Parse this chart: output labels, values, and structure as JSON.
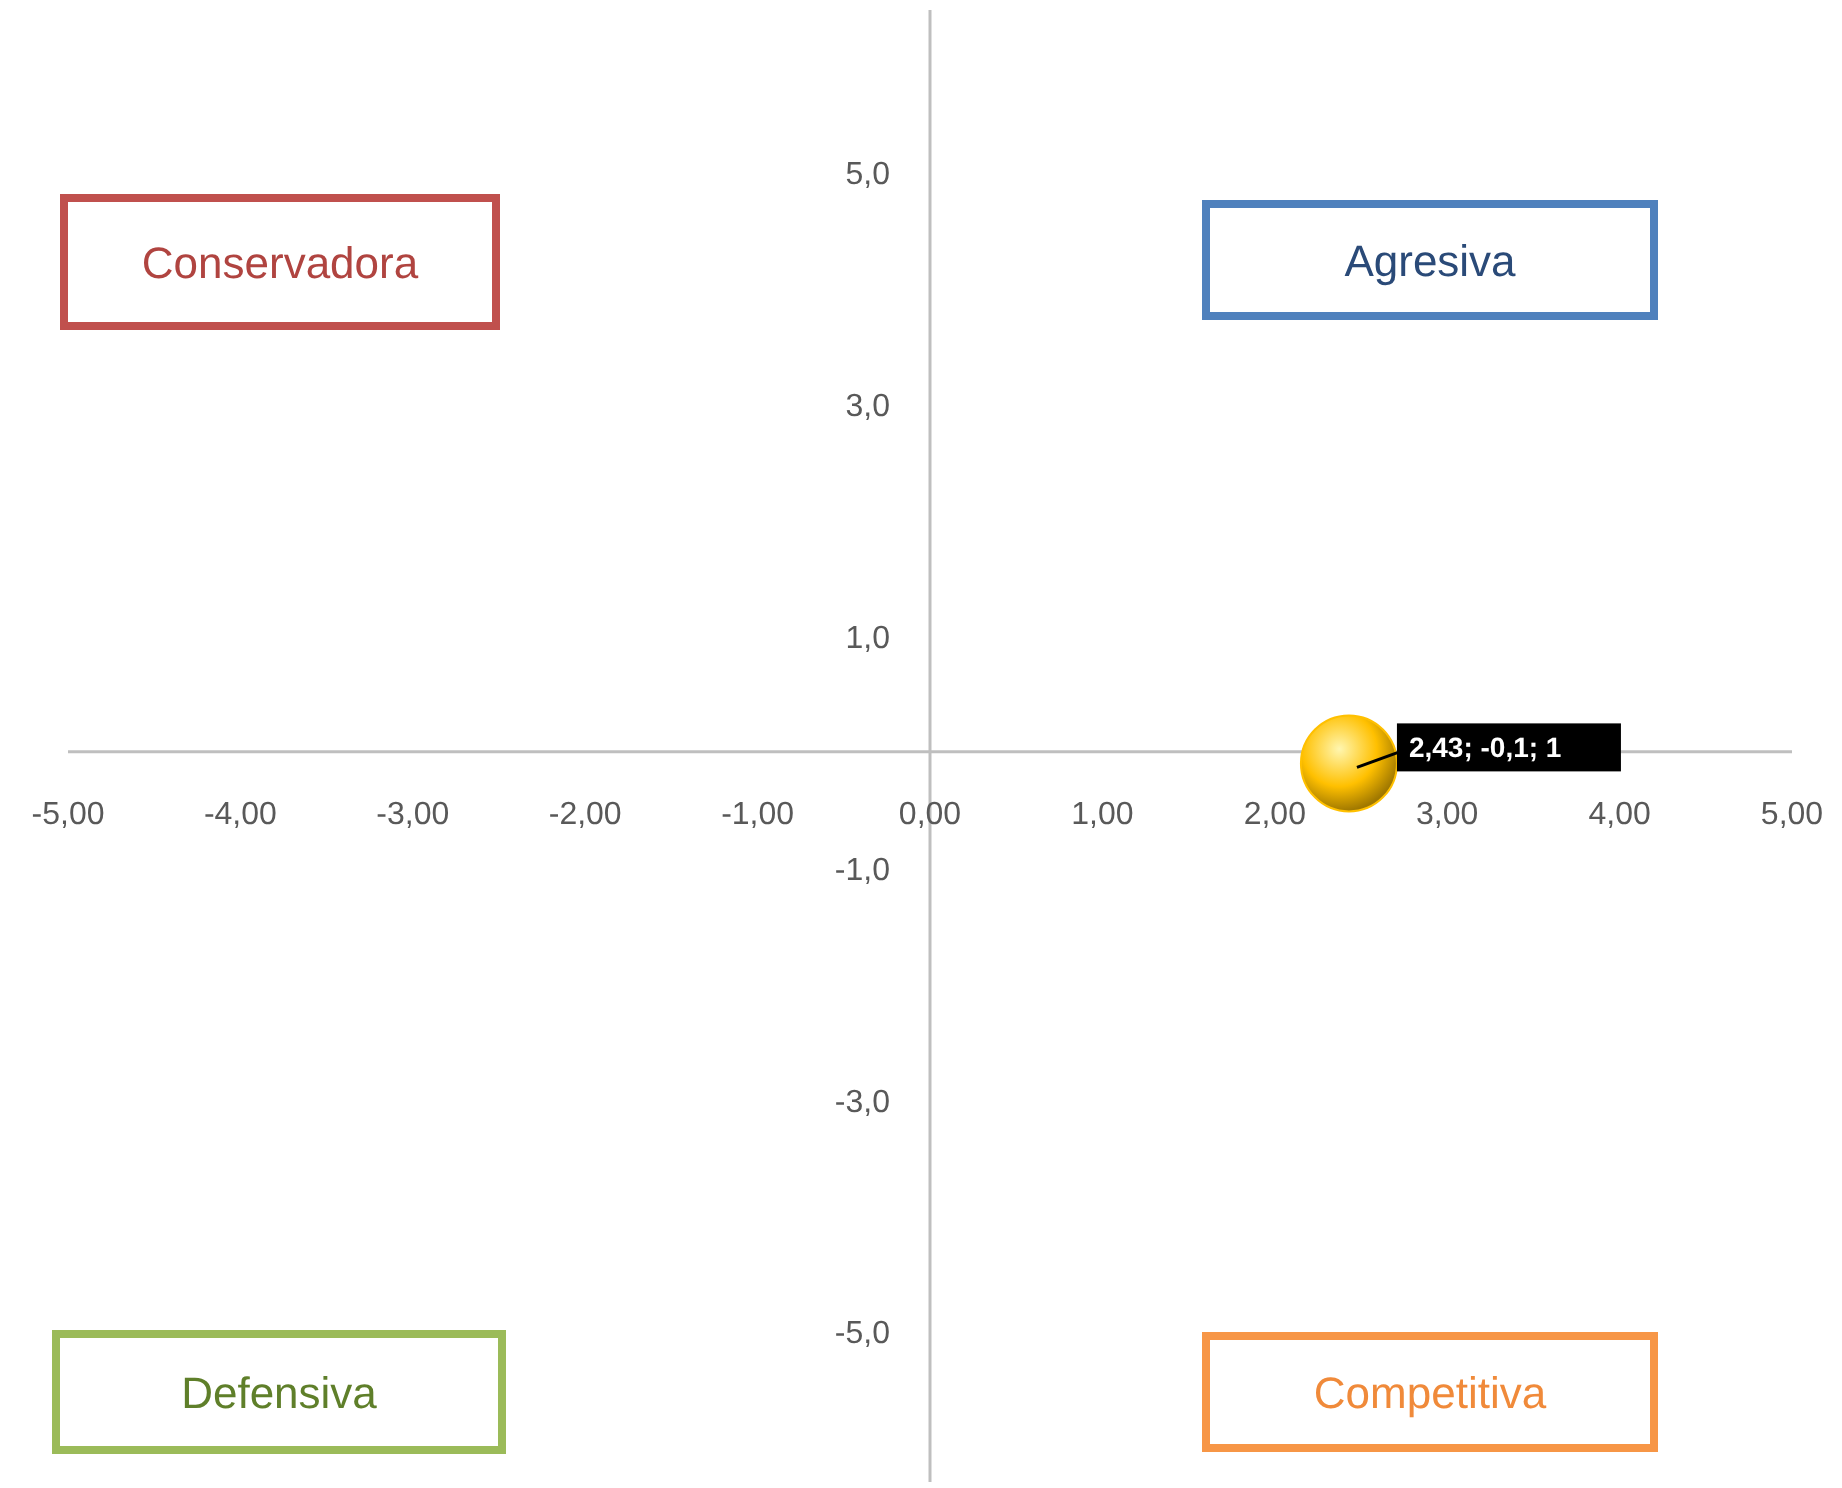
{
  "chart_data": {
    "type": "bubble",
    "x": [
      2.43
    ],
    "series": [
      {
        "color": "#ffc000",
        "values": [
          -0.1
        ],
        "sizes": [
          1
        ],
        "value_labels": [
          "2,43; -0,1; 1"
        ]
      }
    ],
    "xlim": [
      -5,
      5
    ],
    "xticks": [
      {
        "value": -5,
        "label": "-5,00"
      },
      {
        "value": -4,
        "label": "-4,00"
      },
      {
        "value": -3,
        "label": "-3,00"
      },
      {
        "value": -2,
        "label": "-2,00"
      },
      {
        "value": -1,
        "label": "-1,00"
      },
      {
        "value": 0,
        "label": "0,00"
      },
      {
        "value": 1,
        "label": "1,00"
      },
      {
        "value": 2,
        "label": "2,00"
      },
      {
        "value": 3,
        "label": "3,00"
      },
      {
        "value": 4,
        "label": "4,00"
      },
      {
        "value": 5,
        "label": "5,00"
      }
    ],
    "ylim": [
      -6.3,
      6.4
    ],
    "yticks": [
      {
        "value": -5,
        "label": "-5,0"
      },
      {
        "value": -3,
        "label": "-3,0"
      },
      {
        "value": -1,
        "label": "-1,0"
      },
      {
        "value": 1,
        "label": "1,0"
      },
      {
        "value": 3,
        "label": "3,0"
      },
      {
        "value": 5,
        "label": "5,0"
      }
    ],
    "annotations": [
      "Conservadora",
      "Agresiva",
      "Defensiva",
      "Competitiva"
    ],
    "grid": false
  }
}
